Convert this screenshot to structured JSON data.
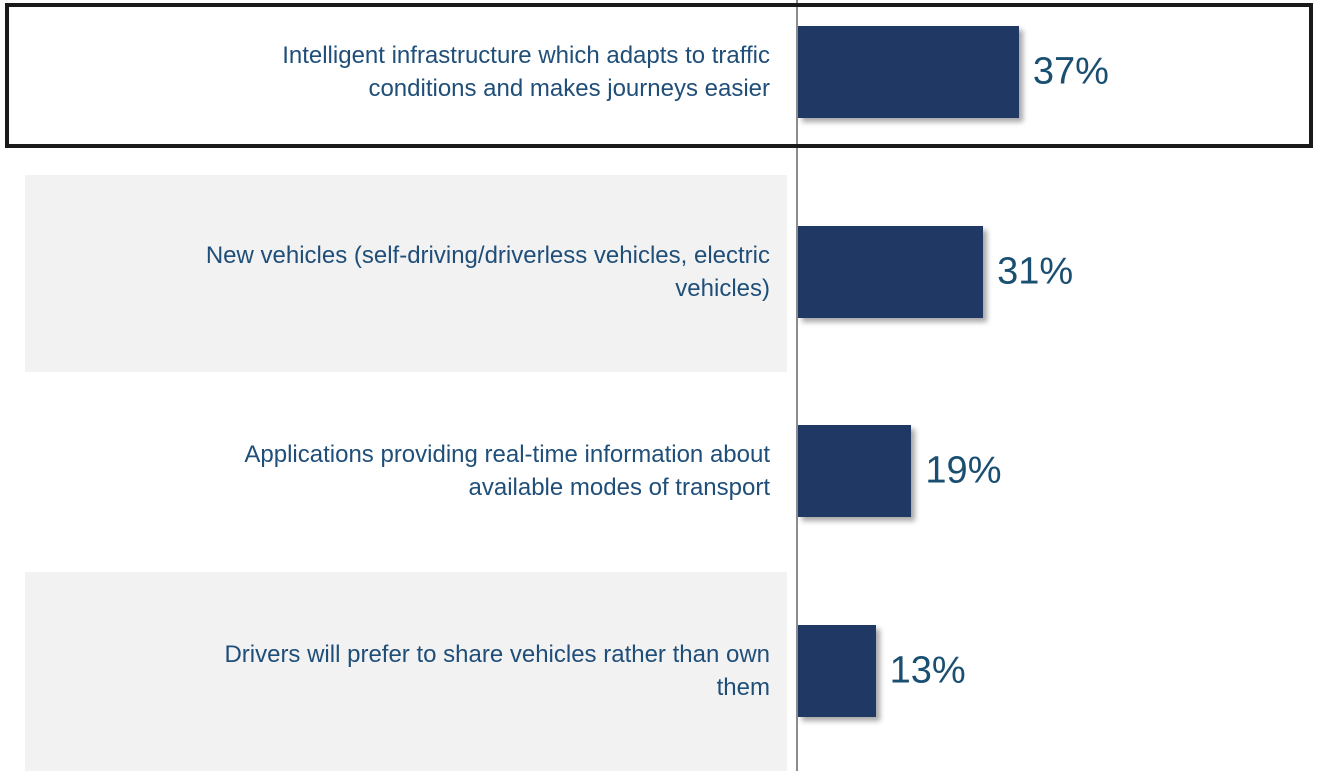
{
  "chart_data": {
    "type": "bar",
    "orientation": "horizontal",
    "categories": [
      "Intelligent infrastructure which adapts to traffic\nconditions and makes journeys easier",
      "New vehicles (self-driving/driverless vehicles, electric\nvehicles)",
      "Applications providing real-time information about\navailable modes of transport",
      "Drivers will prefer to share vehicles rather than own\nthem"
    ],
    "values": [
      37,
      31,
      19,
      13
    ],
    "value_labels": [
      "37%",
      "31%",
      "19%",
      "13%"
    ],
    "color": "#1f3864"
  }
}
